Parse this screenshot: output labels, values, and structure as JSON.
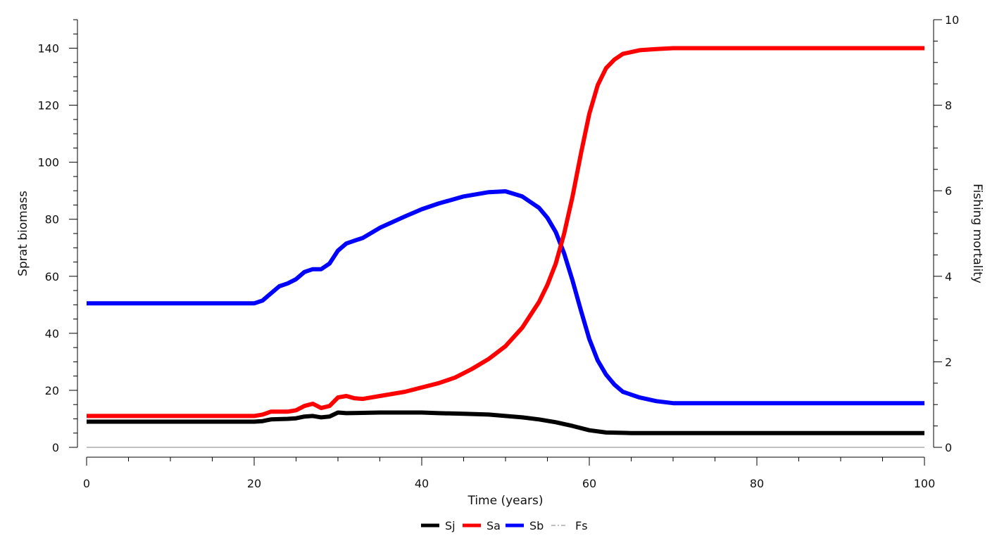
{
  "chart_data": {
    "type": "line",
    "xlabel": "Time (years)",
    "ylabel": "Sprat biomass",
    "ylabel_right": "Fishing mortality",
    "xlim": [
      0,
      100
    ],
    "ylim": [
      0,
      150
    ],
    "ylim_right": [
      0,
      10
    ],
    "x_ticks": [
      "0",
      "20",
      "40",
      "60",
      "80",
      "100"
    ],
    "y_ticks": [
      "0",
      "20",
      "40",
      "60",
      "80",
      "100",
      "120",
      "140"
    ],
    "y_right_ticks": [
      "0",
      "2",
      "4",
      "6",
      "8",
      "10"
    ],
    "grid": false,
    "legend_position": "bottom",
    "series": [
      {
        "name": "Sj",
        "color": "#000000",
        "axis": "left",
        "x": [
          0,
          20,
          21,
          22,
          24,
          25,
          26,
          27,
          28,
          29,
          30,
          31,
          35,
          40,
          42,
          45,
          48,
          50,
          52,
          54,
          56,
          58,
          60,
          62,
          65,
          70,
          80,
          90,
          100
        ],
        "y": [
          9,
          9,
          9.2,
          9.8,
          10,
          10.2,
          10.8,
          11,
          10.5,
          10.8,
          12.2,
          12,
          12.2,
          12.2,
          12,
          11.8,
          11.5,
          11,
          10.5,
          9.8,
          8.8,
          7.5,
          6,
          5.2,
          5,
          5,
          5,
          5,
          5
        ]
      },
      {
        "name": "Sa",
        "color": "#ff0000",
        "axis": "left",
        "x": [
          0,
          20,
          21,
          22,
          24,
          25,
          26,
          27,
          28,
          29,
          30,
          31,
          32,
          33,
          35,
          38,
          40,
          42,
          44,
          46,
          48,
          50,
          52,
          54,
          55,
          56,
          57,
          58,
          59,
          60,
          61,
          62,
          63,
          64,
          66,
          68,
          70,
          80,
          90,
          100
        ],
        "y": [
          11,
          11,
          11.5,
          12.5,
          12.5,
          13,
          14.5,
          15.3,
          13.8,
          14.5,
          17.5,
          18,
          17.2,
          17,
          18,
          19.5,
          21,
          22.5,
          24.5,
          27.5,
          31,
          35.5,
          42,
          51,
          57,
          64.5,
          75,
          88,
          103,
          117,
          127,
          133,
          136,
          138,
          139.3,
          139.7,
          140,
          140,
          140,
          140
        ]
      },
      {
        "name": "Sb",
        "color": "#0000ff",
        "axis": "left",
        "x": [
          0,
          20,
          21,
          22,
          23,
          24,
          25,
          26,
          27,
          28,
          29,
          30,
          31,
          32,
          33,
          35,
          38,
          40,
          42,
          45,
          48,
          50,
          52,
          54,
          55,
          56,
          57,
          58,
          59,
          60,
          61,
          62,
          63,
          64,
          66,
          68,
          70,
          80,
          90,
          100
        ],
        "y": [
          50.5,
          50.5,
          51.5,
          54,
          56.5,
          57.5,
          59,
          61.5,
          62.5,
          62.5,
          64.5,
          69,
          71.5,
          72.5,
          73.5,
          77,
          81,
          83.5,
          85.5,
          88,
          89.5,
          89.8,
          88,
          84,
          80.5,
          75.5,
          68,
          58.5,
          48,
          38,
          30.5,
          25.5,
          22,
          19.5,
          17.5,
          16.2,
          15.5,
          15.5,
          15.5,
          15.5
        ]
      },
      {
        "name": "Fs",
        "color": "#aaaaaa",
        "axis": "right",
        "dashed": true,
        "x": [
          0,
          100
        ],
        "y": [
          0,
          0
        ]
      }
    ]
  }
}
